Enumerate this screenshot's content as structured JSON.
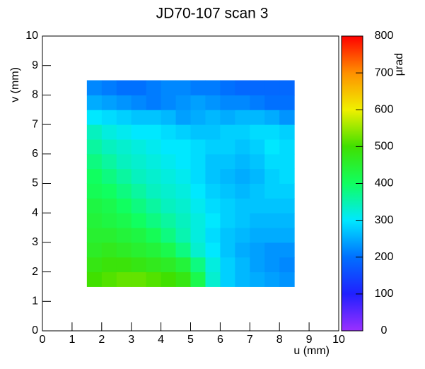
{
  "chart_data": {
    "type": "heatmap",
    "title": "JD70-107 scan 3",
    "xlabel": "u (mm)",
    "ylabel": "v (mm)",
    "zlabel": "µrad",
    "xlim": [
      0,
      10
    ],
    "ylim": [
      0,
      10
    ],
    "zlim": [
      0,
      800
    ],
    "xticks": [
      0,
      1,
      2,
      3,
      4,
      5,
      6,
      7,
      8,
      9,
      10
    ],
    "yticks": [
      0,
      1,
      2,
      3,
      4,
      5,
      6,
      7,
      8,
      9,
      10
    ],
    "zticks": [
      0,
      100,
      200,
      300,
      400,
      500,
      600,
      700,
      800
    ],
    "palette": [
      "#9b30ff",
      "#2020ff",
      "#0070ff",
      "#00e8ff",
      "#10ff60",
      "#40e000",
      "#f0f000",
      "#ff9000",
      "#ff0000"
    ],
    "xbins": [
      1.5,
      2,
      2.5,
      3,
      3.5,
      4,
      4.5,
      5,
      5.5,
      6,
      6.5,
      7,
      7.5,
      8,
      8.5
    ],
    "ybins": [
      1.5,
      2,
      2.5,
      3,
      3.5,
      4,
      4.5,
      5,
      5.5,
      6,
      6.5,
      7,
      7.5,
      8,
      8.5
    ],
    "z": [
      [
        500,
        510,
        520,
        520,
        510,
        500,
        480,
        420,
        330,
        280,
        260,
        250,
        240,
        230
      ],
      [
        480,
        490,
        490,
        480,
        470,
        460,
        440,
        380,
        320,
        280,
        260,
        240,
        230,
        220
      ],
      [
        460,
        470,
        460,
        450,
        440,
        420,
        380,
        330,
        300,
        270,
        250,
        240,
        230,
        230
      ],
      [
        450,
        450,
        440,
        430,
        410,
        380,
        350,
        320,
        290,
        270,
        260,
        250,
        250,
        250
      ],
      [
        440,
        430,
        420,
        400,
        380,
        360,
        340,
        320,
        300,
        280,
        270,
        260,
        260,
        260
      ],
      [
        430,
        420,
        400,
        380,
        360,
        340,
        330,
        310,
        290,
        280,
        270,
        270,
        270,
        270
      ],
      [
        410,
        400,
        380,
        360,
        340,
        330,
        320,
        300,
        280,
        270,
        260,
        270,
        280,
        280
      ],
      [
        400,
        380,
        360,
        340,
        330,
        320,
        310,
        290,
        270,
        260,
        250,
        260,
        280,
        290
      ],
      [
        380,
        360,
        340,
        330,
        320,
        310,
        300,
        290,
        270,
        270,
        260,
        270,
        290,
        290
      ],
      [
        360,
        340,
        330,
        320,
        310,
        300,
        300,
        290,
        280,
        280,
        270,
        280,
        300,
        290
      ],
      [
        340,
        320,
        310,
        300,
        300,
        290,
        280,
        270,
        270,
        280,
        280,
        290,
        290,
        280
      ],
      [
        300,
        290,
        280,
        270,
        270,
        260,
        240,
        250,
        260,
        250,
        260,
        260,
        250,
        230
      ],
      [
        250,
        240,
        230,
        220,
        210,
        220,
        230,
        240,
        230,
        220,
        220,
        210,
        200,
        200
      ],
      [
        220,
        210,
        200,
        200,
        210,
        220,
        220,
        210,
        210,
        200,
        190,
        190,
        190,
        190
      ]
    ]
  }
}
